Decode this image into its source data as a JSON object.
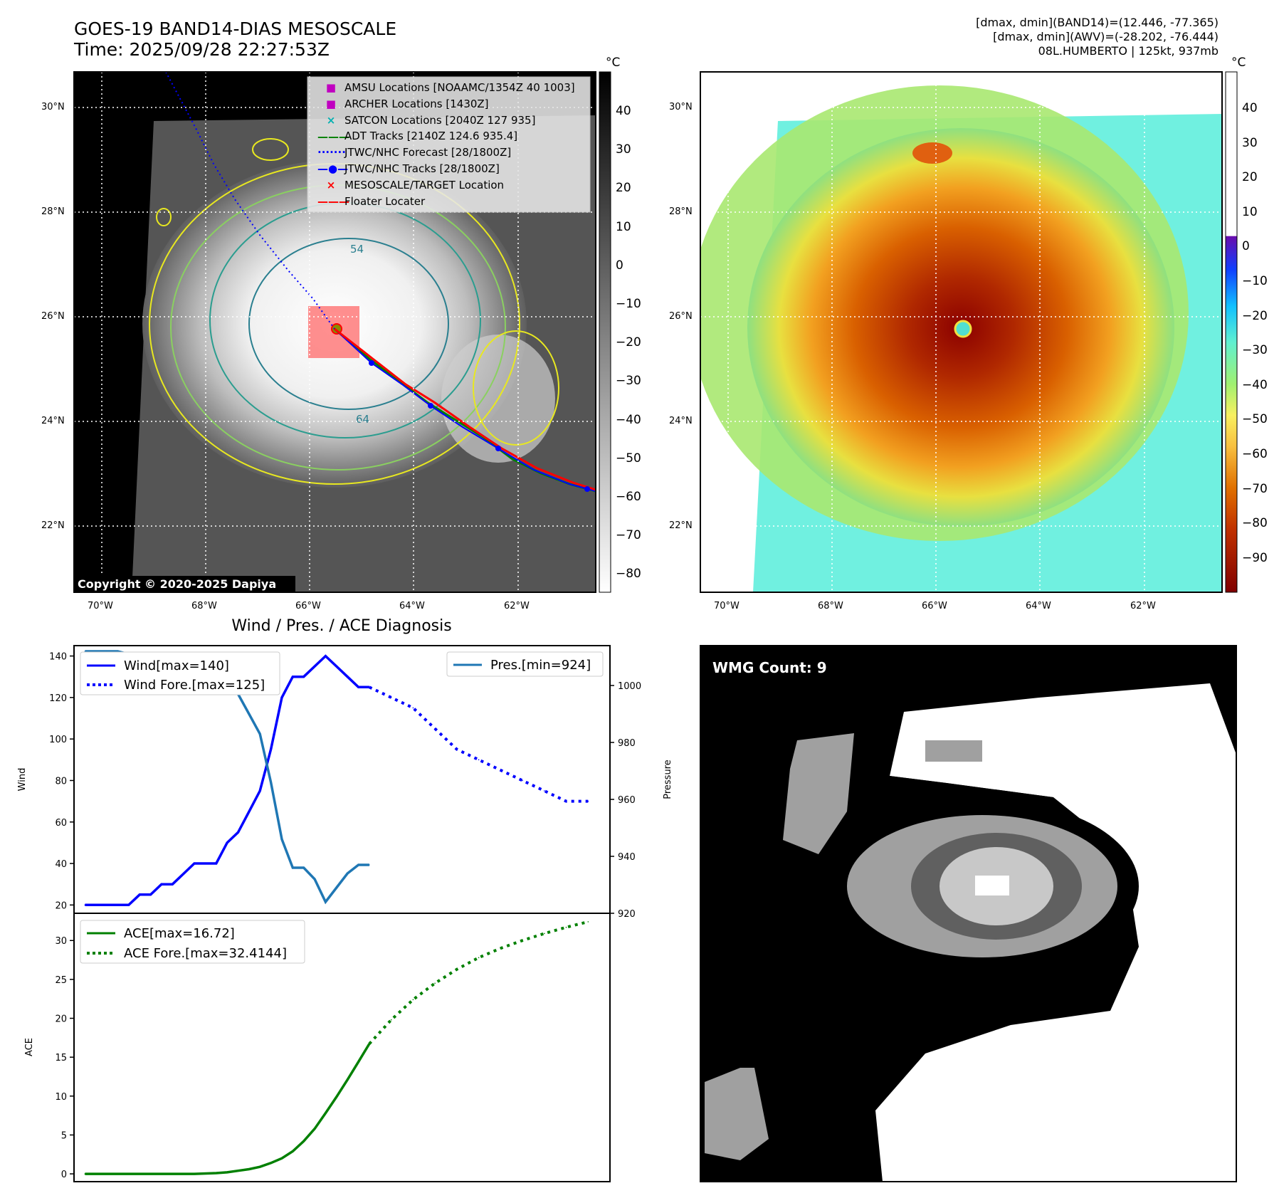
{
  "header": {
    "title_line1": "GOES-19 BAND14-DIAS MESOSCALE",
    "title_line2": "Time: 2025/09/28 22:27:53Z",
    "right_line1": "[dmax, dmin](BAND14)=(12.446, -77.365)",
    "right_line2": "[dmax, dmin](AWV)=(-28.202, -76.444)",
    "right_line3": "08L.HUMBERTO | 125kt, 937mb"
  },
  "map_left": {
    "lat_labels": [
      "30°N",
      "28°N",
      "26°N",
      "24°N",
      "22°N"
    ],
    "lon_labels": [
      "70°W",
      "68°W",
      "66°W",
      "64°W",
      "62°W"
    ],
    "contour_labels": [
      "54",
      "64"
    ],
    "copyright": "Copyright © 2020-2025 Dapiya",
    "legend": [
      {
        "label": "AMSU Locations [NOAAMC/1354Z 40 1003]",
        "color": "#c000c0",
        "marker": "square"
      },
      {
        "label": "ARCHER Locations [1430Z]",
        "color": "#c000c0",
        "marker": "square"
      },
      {
        "label": "SATCON Locations [2040Z 127 935]",
        "color": "#00b0b0",
        "marker": "x"
      },
      {
        "label": "ADT Tracks [2140Z 124.6 935.4]",
        "color": "#008000",
        "marker": "line"
      },
      {
        "label": "JTWC/NHC Forecast [28/1800Z]",
        "color": "#0000ff",
        "marker": "dotted"
      },
      {
        "label": "JTWC/NHC Tracks [28/1800Z]",
        "color": "#0000ff",
        "marker": "line-dot"
      },
      {
        "label": "MESOSCALE/TARGET Location",
        "color": "#ff0000",
        "marker": "x"
      },
      {
        "label": "Floater Locater",
        "color": "#ff0000",
        "marker": "line"
      }
    ],
    "colorbar": {
      "unit": "°C",
      "ticks": [
        "40",
        "30",
        "20",
        "10",
        "0",
        "−10",
        "−20",
        "−30",
        "−40",
        "−50",
        "−60",
        "−70",
        "−80"
      ]
    }
  },
  "map_right": {
    "lat_labels": [
      "30°N",
      "28°N",
      "26°N",
      "24°N",
      "22°N"
    ],
    "lon_labels": [
      "70°W",
      "68°W",
      "66°W",
      "64°W",
      "62°W"
    ],
    "colorbar": {
      "unit": "°C",
      "ticks": [
        "40",
        "30",
        "20",
        "10",
        "0",
        "−10",
        "−20",
        "−30",
        "−40",
        "−50",
        "−60",
        "−70",
        "−80",
        "−90"
      ]
    }
  },
  "wmg": {
    "label": "WMG Count: 9"
  },
  "chart_data": [
    {
      "type": "line",
      "title": "Wind / Pres. / ACE Diagnosis",
      "ylabel": "Wind",
      "ylabel_right": "Pressure",
      "ylim": [
        16,
        145
      ],
      "ylim_right": [
        920,
        1014
      ],
      "yticks": [
        20,
        40,
        60,
        80,
        100,
        120,
        140
      ],
      "yticks_right": [
        920,
        940,
        960,
        980,
        1000
      ],
      "legend_left": [
        "Wind[max=140]",
        "Wind Fore.[max=125]"
      ],
      "legend_right": [
        "Pres.[min=924]"
      ],
      "series": [
        {
          "name": "Wind[max=140]",
          "color": "#0000ff",
          "style": "solid",
          "x": [
            0,
            1,
            2,
            3,
            4,
            5,
            6,
            7,
            8,
            9,
            10,
            11,
            12,
            13,
            14,
            15,
            16,
            17,
            18,
            19,
            20,
            21,
            22,
            23,
            24,
            25,
            26
          ],
          "values": [
            20,
            20,
            20,
            20,
            20,
            25,
            25,
            30,
            30,
            35,
            40,
            40,
            40,
            50,
            55,
            65,
            75,
            95,
            120,
            130,
            130,
            135,
            140,
            135,
            130,
            125,
            125
          ]
        },
        {
          "name": "Wind Fore.[max=125]",
          "color": "#0000ff",
          "style": "dotted",
          "x": [
            26,
            28,
            30,
            32,
            34,
            36,
            38,
            40,
            42,
            44,
            46
          ],
          "values": [
            125,
            120,
            115,
            105,
            95,
            90,
            85,
            80,
            75,
            70,
            70
          ]
        },
        {
          "name": "Pres.[min=924]",
          "color": "#1f77b4",
          "style": "solid",
          "axis": "right",
          "x": [
            0,
            1,
            2,
            3,
            4,
            5,
            6,
            7,
            8,
            9,
            10,
            11,
            12,
            13,
            14,
            15,
            16,
            17,
            18,
            19,
            20,
            21,
            22,
            23,
            24,
            25,
            26
          ],
          "values": [
            1012,
            1012,
            1012,
            1012,
            1011,
            1011,
            1011,
            1011,
            1010,
            1010,
            1010,
            1009,
            1008,
            1002,
            997,
            990,
            983,
            966,
            946,
            936,
            936,
            932,
            924,
            929,
            934,
            937,
            937
          ]
        }
      ],
      "xlim": [
        -1,
        48
      ]
    },
    {
      "type": "line",
      "ylabel": "ACE",
      "ylim": [
        -1,
        33.5
      ],
      "yticks": [
        0,
        5,
        10,
        15,
        20,
        25,
        30
      ],
      "legend": [
        "ACE[max=16.72]",
        "ACE Fore.[max=32.4144]"
      ],
      "series": [
        {
          "name": "ACE[max=16.72]",
          "color": "#008000",
          "style": "solid",
          "x": [
            0,
            2,
            4,
            6,
            8,
            10,
            12,
            13,
            14,
            15,
            16,
            17,
            18,
            19,
            20,
            21,
            22,
            23,
            24,
            25,
            26
          ],
          "values": [
            0,
            0,
            0,
            0,
            0,
            0,
            0.1,
            0.2,
            0.4,
            0.6,
            0.9,
            1.4,
            2,
            2.9,
            4.2,
            5.8,
            7.8,
            9.9,
            12.1,
            14.4,
            16.72
          ]
        },
        {
          "name": "ACE Fore.[max=32.4144]",
          "color": "#008000",
          "style": "dotted",
          "x": [
            26,
            28,
            30,
            32,
            34,
            36,
            38,
            40,
            42,
            44,
            46
          ],
          "values": [
            16.72,
            19.8,
            22.4,
            24.5,
            26.3,
            27.8,
            29.0,
            30.0,
            30.9,
            31.7,
            32.4144
          ]
        }
      ],
      "xlim": [
        -1,
        48
      ]
    }
  ]
}
